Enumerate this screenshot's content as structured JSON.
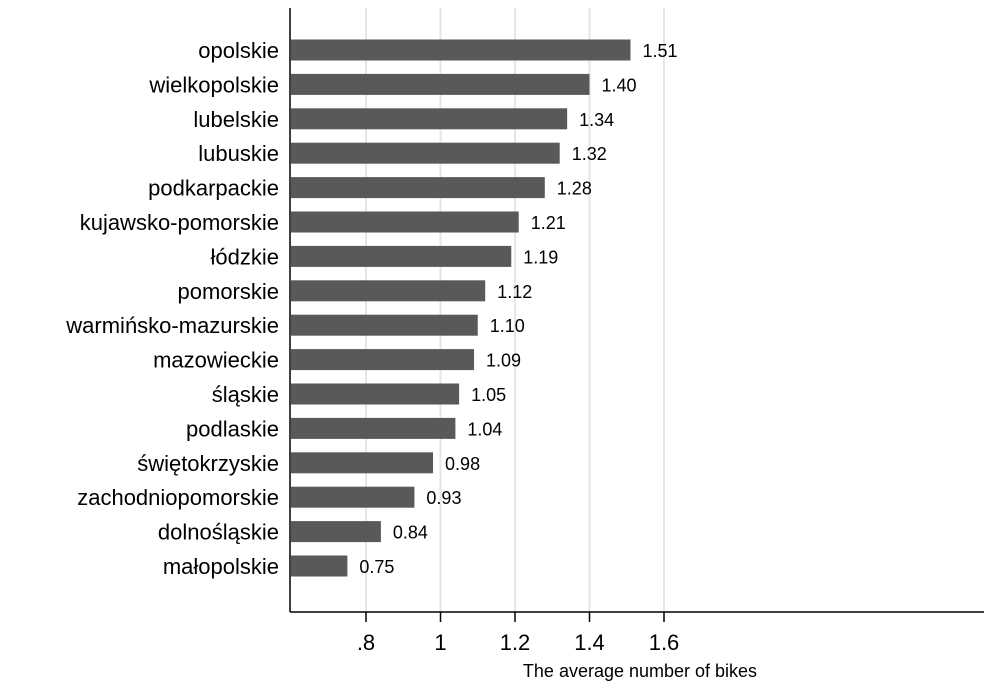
{
  "chart_data": {
    "type": "bar",
    "orientation": "horizontal",
    "title": "",
    "xlabel": "The average number of bikes",
    "ylabel": "",
    "xlim": [
      0.7,
      1.63
    ],
    "xticks": [
      0.8,
      1.0,
      1.2,
      1.4,
      1.6
    ],
    "xtick_labels": [
      ".8",
      "1",
      "1.2",
      "1.4",
      "1.6"
    ],
    "grid": true,
    "bar_color": "#595959",
    "gridline_color": "#e6e6e6",
    "categories": [
      "opolskie",
      "wielkopolskie",
      "lubelskie",
      "lubuskie",
      "podkarpackie",
      "kujawsko-pomorskie",
      "łódzkie",
      "pomorskie",
      "warmińsko-mazurskie",
      "mazowieckie",
      "śląskie",
      "podlaskie",
      "świętokrzyskie",
      "zachodniopomorskie",
      "dolnośląskie",
      "małopolskie"
    ],
    "values": [
      1.51,
      1.4,
      1.34,
      1.32,
      1.28,
      1.21,
      1.19,
      1.12,
      1.1,
      1.09,
      1.05,
      1.04,
      0.98,
      0.93,
      0.84,
      0.75
    ],
    "value_labels": [
      "1.51",
      "1.40",
      "1.34",
      "1.32",
      "1.28",
      "1.21",
      "1.19",
      "1.12",
      "1.10",
      "1.09",
      "1.05",
      "1.04",
      "0.98",
      "0.93",
      "0.84",
      "0.75"
    ]
  }
}
